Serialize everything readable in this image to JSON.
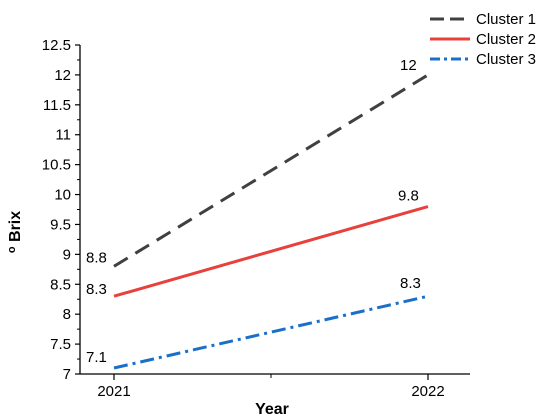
{
  "chart_data": {
    "type": "line",
    "x": [
      "2021",
      "2022"
    ],
    "xlabel": "Year",
    "ylabel": "o Brix",
    "ylim": [
      7,
      12.5
    ],
    "y_ticks": [
      "7",
      "7.5",
      "8",
      "8.5",
      "9",
      "9.5",
      "10",
      "10.5",
      "11",
      "11.5",
      "12",
      "12.5"
    ],
    "grid": false,
    "legend_position": "top-right",
    "series": [
      {
        "name": "Cluster 1",
        "values": [
          8.8,
          12
        ],
        "labels": [
          "8.8",
          "12"
        ],
        "color": "#404040",
        "style": "dashed"
      },
      {
        "name": "Cluster 2",
        "values": [
          8.3,
          9.8
        ],
        "labels": [
          "8.3",
          "9.8"
        ],
        "color": "#e8413c",
        "style": "solid"
      },
      {
        "name": "Cluster 3",
        "values": [
          7.1,
          8.3
        ],
        "labels": [
          "7.1",
          "8.3"
        ],
        "color": "#1a6fc9",
        "style": "dash-dot"
      }
    ]
  }
}
